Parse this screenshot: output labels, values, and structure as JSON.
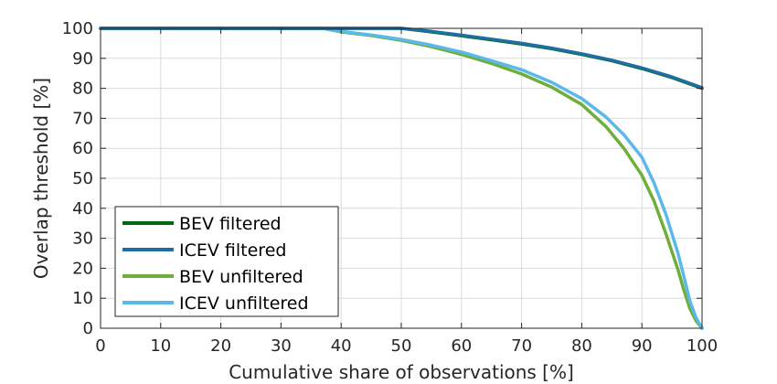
{
  "chart_data": {
    "type": "line",
    "xlabel": "Cumulative share of observations [%]",
    "ylabel": "Overlap threshold [%]",
    "xlim": [
      0,
      100
    ],
    "ylim": [
      0,
      100
    ],
    "xticks": [
      "0",
      "10",
      "20",
      "30",
      "40",
      "50",
      "60",
      "70",
      "80",
      "90",
      "100"
    ],
    "yticks": [
      "0",
      "10",
      "20",
      "30",
      "40",
      "50",
      "60",
      "70",
      "80",
      "90",
      "100"
    ],
    "grid": true,
    "legend_position": "bottom-left",
    "series": [
      {
        "name": "BEV filtered",
        "color": "#00690f",
        "x": [
          0,
          38,
          45,
          50,
          55,
          60,
          65,
          70,
          75,
          80,
          85,
          90,
          95,
          100
        ],
        "y": [
          100,
          100,
          100,
          100,
          98.8,
          97.5,
          96.2,
          94.8,
          93.2,
          91.3,
          89.2,
          86.6,
          83.6,
          80
        ]
      },
      {
        "name": "ICEV filtered",
        "color": "#1f6ea3",
        "x": [
          0,
          38,
          45,
          50,
          55,
          60,
          65,
          70,
          75,
          80,
          85,
          90,
          95,
          100
        ],
        "y": [
          100,
          100,
          100,
          100,
          99,
          97.7,
          96.4,
          95,
          93.4,
          91.5,
          89.4,
          86.8,
          83.8,
          80.2
        ]
      },
      {
        "name": "BEV unfiltered",
        "color": "#6fae3a",
        "x": [
          0,
          37,
          40,
          45,
          50,
          55,
          60,
          65,
          70,
          75,
          80,
          84,
          87,
          90,
          92,
          94,
          96,
          97,
          98,
          99,
          100
        ],
        "y": [
          100,
          100,
          98.8,
          97.6,
          96,
          93.9,
          91.3,
          88.3,
          84.8,
          80.4,
          74.6,
          67.3,
          60,
          51,
          42.5,
          31.5,
          19.5,
          12.5,
          6.5,
          2.5,
          0
        ]
      },
      {
        "name": "ICEV unfiltered",
        "color": "#5ab9ea",
        "x": [
          0,
          37,
          40,
          45,
          50,
          55,
          60,
          65,
          70,
          75,
          80,
          84,
          87,
          90,
          92,
          94,
          96,
          97,
          98,
          99,
          100
        ],
        "y": [
          100,
          100,
          99,
          97.8,
          96.3,
          94.4,
          92.1,
          89.2,
          86.2,
          82,
          76.6,
          70.5,
          64.5,
          57,
          48.5,
          38,
          25,
          17,
          9,
          3.5,
          0
        ]
      }
    ],
    "legend_order": [
      2,
      3,
      0,
      1
    ]
  }
}
